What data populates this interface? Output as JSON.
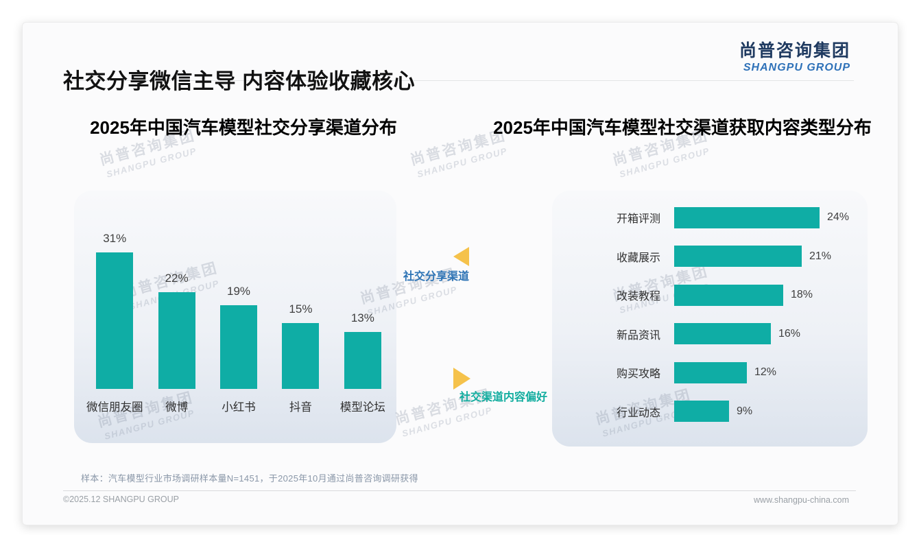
{
  "header": {
    "title": "社交分享微信主导 内容体验收藏核心",
    "logo": {
      "cn": "尚普咨询集团",
      "en": "SHANGPU GROUP"
    }
  },
  "watermark": {
    "cn": "尚普咨询集团",
    "en": "SHANGPU GROUP"
  },
  "annotations": {
    "share_channel": "社交分享渠道",
    "content_preference": "社交渠道内容偏好"
  },
  "footnote": "样本：汽车模型行业市场调研样本量N=1451，于2025年10月通过尚普咨询调研获得",
  "footer": {
    "copyright": "©2025.12 SHANGPU GROUP",
    "website": "www.shangpu-china.com"
  },
  "colors": {
    "bar_teal": "#0FADA5",
    "accent_gold": "#F5C24B",
    "annotation_blue": "#2E74B5",
    "annotation_teal": "#12AD9F",
    "logo_navy": "#1F3A60",
    "logo_blue": "#2E71B8"
  },
  "chart_data": [
    {
      "type": "bar",
      "orientation": "vertical",
      "title": "2025年中国汽车模型社交分享渠道分布",
      "categories": [
        "微信朋友圈",
        "微博",
        "小红书",
        "抖音",
        "模型论坛"
      ],
      "values": [
        31,
        22,
        19,
        15,
        13
      ],
      "unit": "%",
      "xlabel": "",
      "ylabel": "",
      "ylim": [
        0,
        31
      ],
      "grid": false,
      "legend": false,
      "bar_color": "#0FADA5"
    },
    {
      "type": "bar",
      "orientation": "horizontal",
      "title": "2025年中国汽车模型社交渠道获取内容类型分布",
      "categories": [
        "开箱评测",
        "收藏展示",
        "改装教程",
        "新品资讯",
        "购买攻略",
        "行业动态"
      ],
      "values": [
        24,
        21,
        18,
        16,
        12,
        9
      ],
      "unit": "%",
      "xlabel": "",
      "ylabel": "",
      "xlim": [
        0,
        24
      ],
      "grid": false,
      "legend": false,
      "bar_color": "#0FADA5"
    }
  ]
}
